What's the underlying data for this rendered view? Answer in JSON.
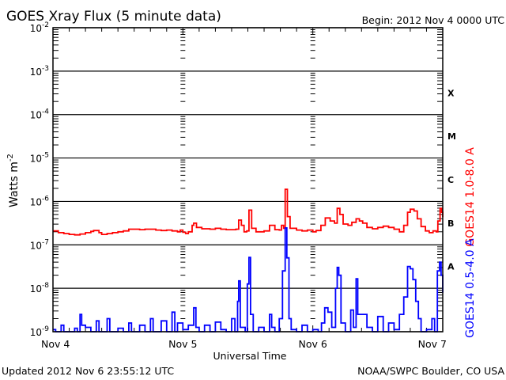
{
  "chart_data": {
    "type": "line",
    "title": "GOES Xray Flux (5 minute data)",
    "begin_label": "Begin:  2012 Nov 4 0000 UTC",
    "xlabel": "Universal Time",
    "ylabel": "Watts m",
    "ylabel_exp": "-2",
    "y_scale": "log",
    "ylim_log10": [
      -9,
      -2
    ],
    "y_ticks": [
      {
        "base": "10",
        "exp": "-2",
        "value": -2
      },
      {
        "base": "10",
        "exp": "-3",
        "value": -3
      },
      {
        "base": "10",
        "exp": "-4",
        "value": -4
      },
      {
        "base": "10",
        "exp": "-5",
        "value": -5
      },
      {
        "base": "10",
        "exp": "-6",
        "value": -6
      },
      {
        "base": "10",
        "exp": "-7",
        "value": -7
      },
      {
        "base": "10",
        "exp": "-8",
        "value": -8
      },
      {
        "base": "10",
        "exp": "-9",
        "value": -9
      }
    ],
    "xlim_hours": [
      0,
      72
    ],
    "x_ticks": [
      {
        "label": "Nov 4",
        "hour": 0
      },
      {
        "label": "Nov 5",
        "hour": 24
      },
      {
        "label": "Nov 6",
        "hour": 48
      },
      {
        "label": "Nov 7",
        "hour": 72
      }
    ],
    "flare_classes": [
      {
        "label": "X",
        "value": -3.5
      },
      {
        "label": "M",
        "value": -4.5
      },
      {
        "label": "C",
        "value": -5.5
      },
      {
        "label": "B",
        "value": -6.5
      },
      {
        "label": "A",
        "value": -7.5
      }
    ],
    "series": [
      {
        "name": "GOES14 1.0-8.0 A",
        "color": "#ff0000",
        "points_hour_log10flux": [
          [
            0,
            -6.68
          ],
          [
            1,
            -6.72
          ],
          [
            2,
            -6.74
          ],
          [
            3,
            -6.76
          ],
          [
            4,
            -6.77
          ],
          [
            5,
            -6.75
          ],
          [
            6,
            -6.72
          ],
          [
            7,
            -6.69
          ],
          [
            7.5,
            -6.67
          ],
          [
            8.5,
            -6.72
          ],
          [
            9,
            -6.76
          ],
          [
            10,
            -6.74
          ],
          [
            11,
            -6.72
          ],
          [
            12,
            -6.7
          ],
          [
            13,
            -6.68
          ],
          [
            14,
            -6.64
          ],
          [
            15,
            -6.64
          ],
          [
            16,
            -6.65
          ],
          [
            17,
            -6.64
          ],
          [
            18,
            -6.64
          ],
          [
            19,
            -6.66
          ],
          [
            20,
            -6.67
          ],
          [
            21,
            -6.66
          ],
          [
            22,
            -6.68
          ],
          [
            23,
            -6.7
          ],
          [
            23.5,
            -6.66
          ],
          [
            24,
            -6.71
          ],
          [
            24.5,
            -6.74
          ],
          [
            25,
            -6.7
          ],
          [
            25.7,
            -6.55
          ],
          [
            26,
            -6.5
          ],
          [
            26.5,
            -6.6
          ],
          [
            27.5,
            -6.63
          ],
          [
            29,
            -6.64
          ],
          [
            30,
            -6.62
          ],
          [
            31,
            -6.64
          ],
          [
            32,
            -6.65
          ],
          [
            33,
            -6.65
          ],
          [
            33.8,
            -6.64
          ],
          [
            34.3,
            -6.43
          ],
          [
            34.8,
            -6.55
          ],
          [
            35.3,
            -6.7
          ],
          [
            35.8,
            -6.68
          ],
          [
            36.2,
            -6.2
          ],
          [
            36.7,
            -6.62
          ],
          [
            37.5,
            -6.7
          ],
          [
            39,
            -6.68
          ],
          [
            40,
            -6.55
          ],
          [
            41,
            -6.65
          ],
          [
            41.8,
            -6.66
          ],
          [
            42.2,
            -6.55
          ],
          [
            42.6,
            -6.62
          ],
          [
            42.9,
            -5.72
          ],
          [
            43.3,
            -6.35
          ],
          [
            43.8,
            -6.62
          ],
          [
            45,
            -6.66
          ],
          [
            46,
            -6.68
          ],
          [
            47,
            -6.66
          ],
          [
            48,
            -6.7
          ],
          [
            48.6,
            -6.67
          ],
          [
            49.5,
            -6.55
          ],
          [
            50.3,
            -6.38
          ],
          [
            51.2,
            -6.45
          ],
          [
            52,
            -6.5
          ],
          [
            52.5,
            -6.16
          ],
          [
            53,
            -6.3
          ],
          [
            53.6,
            -6.52
          ],
          [
            54.5,
            -6.55
          ],
          [
            55.2,
            -6.48
          ],
          [
            56,
            -6.4
          ],
          [
            56.6,
            -6.45
          ],
          [
            57.2,
            -6.5
          ],
          [
            58,
            -6.6
          ],
          [
            59,
            -6.63
          ],
          [
            60,
            -6.6
          ],
          [
            61,
            -6.57
          ],
          [
            62,
            -6.6
          ],
          [
            63,
            -6.64
          ],
          [
            64,
            -6.7
          ],
          [
            64.8,
            -6.55
          ],
          [
            65.5,
            -6.25
          ],
          [
            66,
            -6.18
          ],
          [
            66.7,
            -6.22
          ],
          [
            67.3,
            -6.4
          ],
          [
            68,
            -6.58
          ],
          [
            68.8,
            -6.68
          ],
          [
            69.5,
            -6.72
          ],
          [
            70.2,
            -6.68
          ],
          [
            70.8,
            -6.7
          ],
          [
            71.1,
            -6.45
          ],
          [
            71.5,
            -6.16
          ],
          [
            71.8,
            -6.25
          ],
          [
            72,
            -6.36
          ]
        ]
      },
      {
        "name": "GOES14 0.5-4.0 A",
        "color": "#0000ff",
        "points_hour_log10flux": [
          [
            0,
            -8.95
          ],
          [
            0.5,
            -9.0
          ],
          [
            1,
            -9.0
          ],
          [
            1.5,
            -8.85
          ],
          [
            2,
            -9.0
          ],
          [
            3,
            -9.0
          ],
          [
            4,
            -8.92
          ],
          [
            4.5,
            -9.0
          ],
          [
            5,
            -8.6
          ],
          [
            5.3,
            -8.85
          ],
          [
            6,
            -8.9
          ],
          [
            7,
            -9.0
          ],
          [
            8,
            -8.75
          ],
          [
            8.5,
            -9.0
          ],
          [
            10,
            -8.7
          ],
          [
            10.5,
            -9.0
          ],
          [
            12,
            -8.92
          ],
          [
            13,
            -9.0
          ],
          [
            14,
            -8.8
          ],
          [
            14.5,
            -9.0
          ],
          [
            16,
            -8.85
          ],
          [
            17,
            -9.0
          ],
          [
            18,
            -8.7
          ],
          [
            18.5,
            -9.0
          ],
          [
            20,
            -8.75
          ],
          [
            21,
            -9.0
          ],
          [
            22,
            -8.55
          ],
          [
            22.5,
            -9.0
          ],
          [
            23,
            -8.8
          ],
          [
            24,
            -8.95
          ],
          [
            25,
            -8.85
          ],
          [
            26,
            -8.45
          ],
          [
            26.4,
            -8.9
          ],
          [
            27,
            -9.0
          ],
          [
            28,
            -8.85
          ],
          [
            29,
            -9.0
          ],
          [
            30,
            -8.78
          ],
          [
            31,
            -8.95
          ],
          [
            32,
            -9.0
          ],
          [
            33,
            -8.7
          ],
          [
            33.6,
            -9.0
          ],
          [
            34.1,
            -8.3
          ],
          [
            34.3,
            -7.83
          ],
          [
            34.6,
            -8.9
          ],
          [
            35.5,
            -9.0
          ],
          [
            35.9,
            -7.9
          ],
          [
            36.2,
            -7.29
          ],
          [
            36.5,
            -8.6
          ],
          [
            37,
            -9.0
          ],
          [
            38,
            -8.9
          ],
          [
            39,
            -9.0
          ],
          [
            40,
            -8.6
          ],
          [
            40.4,
            -8.9
          ],
          [
            41,
            -9.0
          ],
          [
            41.8,
            -8.7
          ],
          [
            42.4,
            -7.6
          ],
          [
            42.9,
            -6.61
          ],
          [
            43.2,
            -7.3
          ],
          [
            43.6,
            -8.7
          ],
          [
            44,
            -8.95
          ],
          [
            45,
            -9.0
          ],
          [
            46,
            -8.85
          ],
          [
            47,
            -9.0
          ],
          [
            48,
            -8.95
          ],
          [
            49,
            -9.0
          ],
          [
            49.6,
            -8.8
          ],
          [
            50.2,
            -8.45
          ],
          [
            50.8,
            -8.55
          ],
          [
            51.5,
            -8.9
          ],
          [
            52.2,
            -8.0
          ],
          [
            52.5,
            -7.52
          ],
          [
            52.8,
            -7.7
          ],
          [
            53.2,
            -8.8
          ],
          [
            54,
            -9.0
          ],
          [
            55,
            -8.5
          ],
          [
            55.5,
            -8.9
          ],
          [
            56,
            -7.78
          ],
          [
            56.3,
            -8.6
          ],
          [
            57,
            -8.6
          ],
          [
            58,
            -8.9
          ],
          [
            59,
            -9.0
          ],
          [
            60,
            -8.65
          ],
          [
            61,
            -9.0
          ],
          [
            62,
            -8.8
          ],
          [
            63,
            -8.95
          ],
          [
            64,
            -8.6
          ],
          [
            64.8,
            -8.2
          ],
          [
            65.5,
            -7.5
          ],
          [
            66,
            -7.55
          ],
          [
            66.5,
            -7.8
          ],
          [
            67,
            -8.3
          ],
          [
            67.5,
            -8.7
          ],
          [
            68,
            -9.0
          ],
          [
            69,
            -8.95
          ],
          [
            70,
            -8.7
          ],
          [
            70.5,
            -9.0
          ],
          [
            71,
            -7.6
          ],
          [
            71.4,
            -7.4
          ],
          [
            71.7,
            -7.7
          ],
          [
            72,
            -8.1
          ]
        ]
      }
    ]
  },
  "footer": {
    "updated": "Updated 2012 Nov  6 23:55:12 UTC",
    "credit": "NOAA/SWPC Boulder, CO USA"
  }
}
